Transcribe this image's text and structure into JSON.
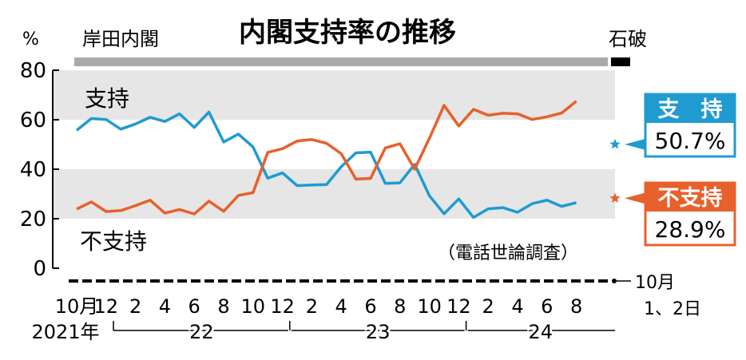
{
  "chart_data": {
    "type": "line",
    "title": "内閣支持率の推移",
    "y_unit": "%",
    "ylim": [
      0,
      80
    ],
    "yticks": [
      0,
      20,
      40,
      60,
      80
    ],
    "grid": "shaded bands 20–40 and 60–80",
    "x_tick_labels": [
      "10月",
      "12",
      "2",
      "4",
      "6",
      "8",
      "10",
      "12",
      "2",
      "4",
      "6",
      "8",
      "10",
      "12",
      "2",
      "4",
      "6",
      "8"
    ],
    "year_labels": [
      "2021年",
      "22",
      "23",
      "24"
    ],
    "final_date_label": [
      "10月",
      "1、2日"
    ],
    "cabinets": [
      {
        "name": "岸田内閣",
        "period": "2021-10 – 2024-09"
      },
      {
        "name": "石破",
        "period": "2024-10"
      }
    ],
    "series": [
      {
        "name": "支持",
        "color": "#1f9bd1",
        "x": [
          "2021-10",
          "2021-11",
          "2021-12",
          "2022-01",
          "2022-02",
          "2022-03",
          "2022-04",
          "2022-05",
          "2022-06",
          "2022-07",
          "2022-08",
          "2022-09",
          "2022-10",
          "2022-11",
          "2022-12",
          "2023-01",
          "2023-02",
          "2023-03",
          "2023-04",
          "2023-05",
          "2023-06",
          "2023-07",
          "2023-08",
          "2023-09",
          "2023-10",
          "2023-11",
          "2023-12",
          "2024-01",
          "2024-02",
          "2024-03",
          "2024-04",
          "2024-05",
          "2024-06",
          "2024-07",
          "2024-08"
        ],
        "values": [
          55.7,
          60.5,
          60.1,
          56.2,
          58.3,
          61.0,
          59.3,
          62.4,
          56.9,
          63.1,
          51.0,
          54.2,
          49.0,
          36.4,
          38.5,
          33.4,
          33.6,
          33.8,
          41.0,
          46.6,
          46.9,
          34.3,
          34.5,
          42.0,
          29.3,
          22.0,
          28.0,
          20.5,
          24.0,
          24.5,
          22.6,
          26.1,
          27.5,
          25.0,
          26.5
        ]
      },
      {
        "name": "不支持",
        "color": "#e8602c",
        "x": [
          "2021-10",
          "2021-11",
          "2021-12",
          "2022-01",
          "2022-02",
          "2022-03",
          "2022-04",
          "2022-05",
          "2022-06",
          "2022-07",
          "2022-08",
          "2022-09",
          "2022-10",
          "2022-11",
          "2022-12",
          "2023-01",
          "2023-02",
          "2023-03",
          "2023-04",
          "2023-05",
          "2023-06",
          "2023-07",
          "2023-08",
          "2023-09",
          "2023-10",
          "2023-11",
          "2023-12",
          "2024-01",
          "2024-02",
          "2024-03",
          "2024-04",
          "2024-05",
          "2024-06",
          "2024-07",
          "2024-08"
        ],
        "values": [
          23.9,
          26.8,
          22.9,
          23.3,
          25.3,
          27.5,
          22.3,
          23.7,
          21.9,
          27.1,
          23.0,
          29.4,
          30.5,
          46.8,
          48.3,
          51.4,
          52.0,
          50.5,
          46.3,
          36.0,
          36.3,
          48.6,
          50.3,
          40.0,
          52.5,
          65.8,
          57.5,
          64.2,
          61.8,
          62.6,
          62.4,
          60.1,
          61.2,
          62.7,
          67.5
        ]
      }
    ],
    "latest": [
      {
        "label": "支　持",
        "value": "50.7%",
        "color": "#1f9bd1",
        "y": 50.7
      },
      {
        "label": "不支持",
        "value": "28.9%",
        "color": "#e8602c",
        "y": 28.9
      }
    ],
    "annotations": {
      "support_label": "支持",
      "disapprove_label": "不支持",
      "source": "（電話世論調査）"
    }
  }
}
